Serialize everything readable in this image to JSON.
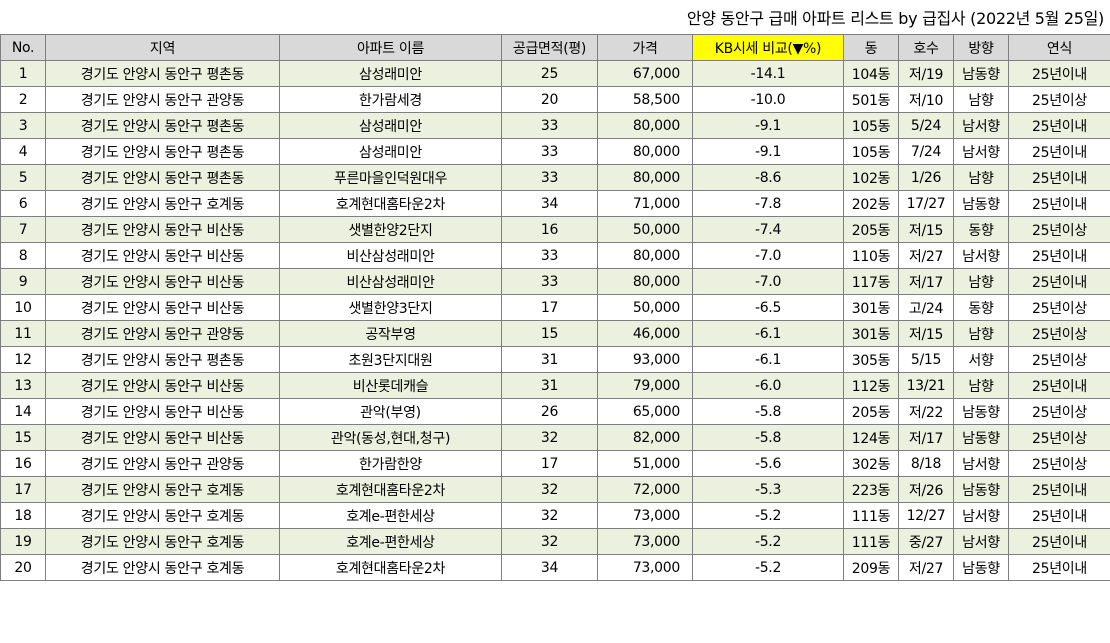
{
  "title": "안양 동안구  급매 아파트 리스트 by 급집사 (2022년 5월 25일)",
  "headers": [
    "No.",
    "지역",
    "아파트 이름",
    "공급면적(평)",
    "가격",
    "KB시세 비교(▼%)",
    "동",
    "호수",
    "방향",
    "연식"
  ],
  "rows": [
    [
      "1",
      "경기도 안양시 동안구 평촌동",
      "삼성래미안",
      "25",
      "67,000",
      "-14.1",
      "104동",
      "저/19",
      "남동향",
      "25년이내"
    ],
    [
      "2",
      "경기도 안양시 동안구 관양동",
      "한가람세경",
      "20",
      "58,500",
      "-10.0",
      "501동",
      "저/10",
      "남향",
      "25년이상"
    ],
    [
      "3",
      "경기도 안양시 동안구 평촌동",
      "삼성래미안",
      "33",
      "80,000",
      "-9.1",
      "105동",
      "5/24",
      "남서향",
      "25년이내"
    ],
    [
      "4",
      "경기도 안양시 동안구 평촌동",
      "삼성래미안",
      "33",
      "80,000",
      "-9.1",
      "105동",
      "7/24",
      "남서향",
      "25년이내"
    ],
    [
      "5",
      "경기도 안양시 동안구 평촌동",
      "푸른마을인덕원대우",
      "33",
      "80,000",
      "-8.6",
      "102동",
      "1/26",
      "남향",
      "25년이내"
    ],
    [
      "6",
      "경기도 안양시 동안구 호계동",
      "호계현대홈타운2차",
      "34",
      "71,000",
      "-7.8",
      "202동",
      "17/27",
      "남동향",
      "25년이내"
    ],
    [
      "7",
      "경기도 안양시 동안구 비산동",
      "샛별한양2단지",
      "16",
      "50,000",
      "-7.4",
      "205동",
      "저/15",
      "동향",
      "25년이상"
    ],
    [
      "8",
      "경기도 안양시 동안구 비산동",
      "비산삼성래미안",
      "33",
      "80,000",
      "-7.0",
      "110동",
      "저/27",
      "남서향",
      "25년이내"
    ],
    [
      "9",
      "경기도 안양시 동안구 비산동",
      "비산삼성래미안",
      "33",
      "80,000",
      "-7.0",
      "117동",
      "저/17",
      "남향",
      "25년이내"
    ],
    [
      "10",
      "경기도 안양시 동안구 비산동",
      "샛별한양3단지",
      "17",
      "50,000",
      "-6.5",
      "301동",
      "고/24",
      "동향",
      "25년이상"
    ],
    [
      "11",
      "경기도 안양시 동안구 관양동",
      "공작부영",
      "15",
      "46,000",
      "-6.1",
      "301동",
      "저/15",
      "남향",
      "25년이상"
    ],
    [
      "12",
      "경기도 안양시 동안구 평촌동",
      "초원3단지대원",
      "31",
      "93,000",
      "-6.1",
      "305동",
      "5/15",
      "서향",
      "25년이상"
    ],
    [
      "13",
      "경기도 안양시 동안구 비산동",
      "비산롯데캐슬",
      "31",
      "79,000",
      "-6.0",
      "112동",
      "13/21",
      "남향",
      "25년이내"
    ],
    [
      "14",
      "경기도 안양시 동안구 비산동",
      "관악(부영)",
      "26",
      "65,000",
      "-5.8",
      "205동",
      "저/22",
      "남동향",
      "25년이상"
    ],
    [
      "15",
      "경기도 안양시 동안구 비산동",
      "관악(동성,현대,청구)",
      "32",
      "82,000",
      "-5.8",
      "124동",
      "저/17",
      "남동향",
      "25년이상"
    ],
    [
      "16",
      "경기도 안양시 동안구 관양동",
      "한가람한양",
      "17",
      "51,000",
      "-5.6",
      "302동",
      "8/18",
      "남서향",
      "25년이상"
    ],
    [
      "17",
      "경기도 안양시 동안구 호계동",
      "호계현대홈타운2차",
      "32",
      "72,000",
      "-5.3",
      "223동",
      "저/26",
      "남동향",
      "25년이내"
    ],
    [
      "18",
      "경기도 안양시 동안구 호계동",
      "호계e-편한세상",
      "32",
      "73,000",
      "-5.2",
      "111동",
      "12/27",
      "남서향",
      "25년이내"
    ],
    [
      "19",
      "경기도 안양시 동안구 호계동",
      "호계e-편한세상",
      "32",
      "73,000",
      "-5.2",
      "111동",
      "중/27",
      "남서향",
      "25년이내"
    ],
    [
      "20",
      "경기도 안양시 동안구 호계동",
      "호계현대홈타운2차",
      "34",
      "73,000",
      "-5.2",
      "209동",
      "저/27",
      "남동향",
      "25년이내"
    ]
  ],
  "colors": {
    "header_bg": "#d9d9d9",
    "highlight_header_bg": "#ffff00",
    "shaded_row_bg": "#ebf1de",
    "border": "#7f7f7f"
  }
}
